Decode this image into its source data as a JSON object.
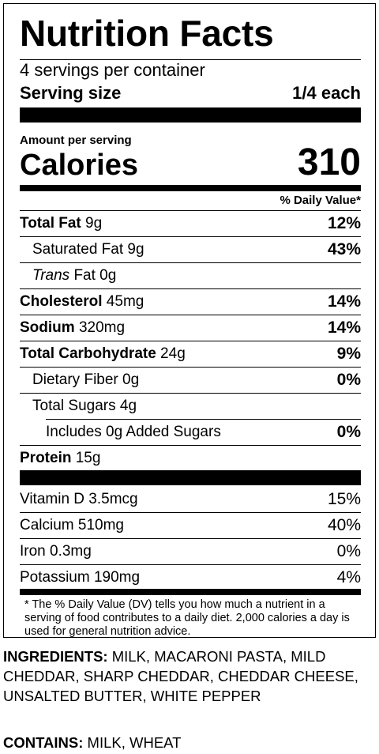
{
  "label": {
    "title": "Nutrition Facts",
    "servings_per_container": "4 servings per container",
    "serving_size_label": "Serving size",
    "serving_size_value": "1/4 each",
    "amount_per_serving": "Amount per serving",
    "calories_label": "Calories",
    "calories_value": "310",
    "daily_value_header": "% Daily Value*",
    "nutrients": [
      {
        "name": "Total Fat",
        "amount": " 9g",
        "pct": "12%"
      },
      {
        "name": "Saturated Fat 9g",
        "pct": "43%"
      },
      {
        "name_italic": "Trans",
        "name_rest": " Fat 0g",
        "pct": ""
      },
      {
        "name": "Cholesterol",
        "amount": " 45mg",
        "pct": "14%"
      },
      {
        "name": "Sodium",
        "amount": " 320mg",
        "pct": "14%"
      },
      {
        "name": "Total Carbohydrate",
        "amount": " 24g",
        "pct": "9%"
      },
      {
        "name": "Dietary Fiber 0g",
        "pct": "0%"
      },
      {
        "name": "Total Sugars 4g",
        "pct": ""
      },
      {
        "name": "Includes 0g Added Sugars",
        "pct": "0%"
      },
      {
        "name": "Protein",
        "amount": " 15g",
        "pct": ""
      }
    ],
    "vitamins": [
      {
        "name": "Vitamin D 3.5mcg",
        "pct": "15%"
      },
      {
        "name": "Calcium 510mg",
        "pct": "40%"
      },
      {
        "name": "Iron 0.3mg",
        "pct": "0%"
      },
      {
        "name": "Potassium 190mg",
        "pct": "4%"
      }
    ],
    "footnote": "* The % Daily Value (DV) tells you how much a nutrient in a serving of food contributes to a daily diet. 2,000 calories a day is used for general nutrition advice."
  },
  "ingredients": {
    "label": "INGREDIENTS:",
    "text": " MILK, MACARONI PASTA, MILD CHEDDAR, SHARP CHEDDAR, CHEDDAR CHEESE, UNSALTED BUTTER, WHITE PEPPER"
  },
  "contains": {
    "label": "CONTAINS:",
    "text": " MILK, WHEAT"
  }
}
